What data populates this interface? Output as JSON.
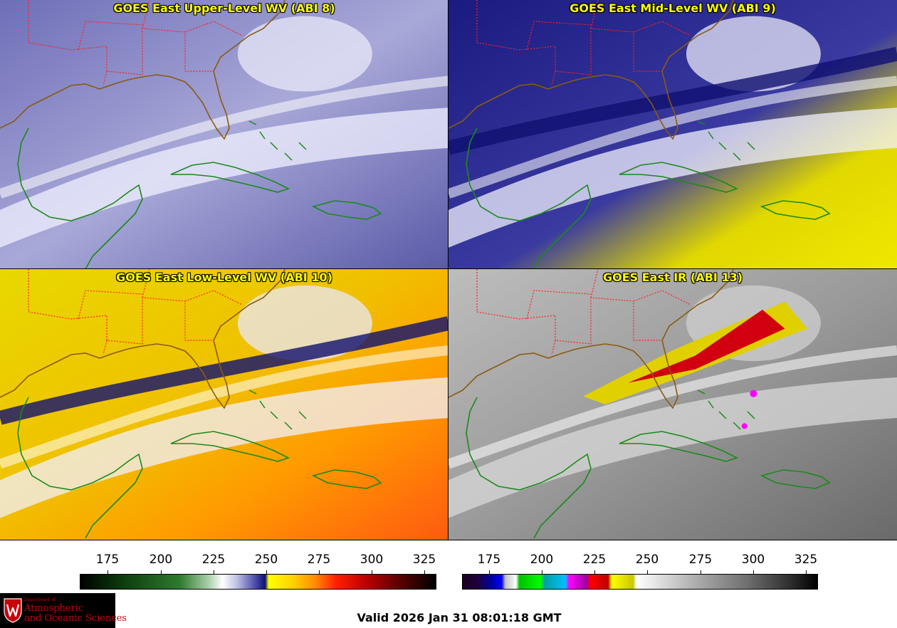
{
  "panels": [
    {
      "title": "GOES East Upper-Level WV (ABI 8)",
      "scheme": "wv",
      "moisture": 0.15
    },
    {
      "title": "GOES East Mid-Level WV (ABI 9)",
      "scheme": "wv",
      "moisture": 0.5
    },
    {
      "title": "GOES East Low-Level WV (ABI 10)",
      "scheme": "wv",
      "moisture": 0.85
    },
    {
      "title": "GOES East IR (ABI 13)",
      "scheme": "ir",
      "moisture": 0.0
    }
  ],
  "colorbars": [
    {
      "name": "wv",
      "ticks": [
        "175",
        "200",
        "225",
        "250",
        "275",
        "300",
        "325"
      ],
      "colors": [
        "#000000",
        "#0a3a0a",
        "#2e7d2e",
        "#a0c8a0",
        "#ffffff",
        "#b8b8e0",
        "#1e1e8c",
        "#ffff00",
        "#ff8c00",
        "#ff0000",
        "#8b0000",
        "#000000"
      ]
    },
    {
      "name": "ir",
      "ticks": [
        "175",
        "200",
        "225",
        "250",
        "275",
        "300",
        "325"
      ]
    }
  ],
  "valid_time": "Valid 2026 Jan 31 08:01:18 GMT",
  "logo": {
    "dept": "Department of",
    "line1": "Atmospheric",
    "line2": "and Oceanic Sciences"
  },
  "colors": {
    "state_borders": "#ff2020",
    "coastline": "#1a8a1a",
    "title": "#ffff00"
  }
}
